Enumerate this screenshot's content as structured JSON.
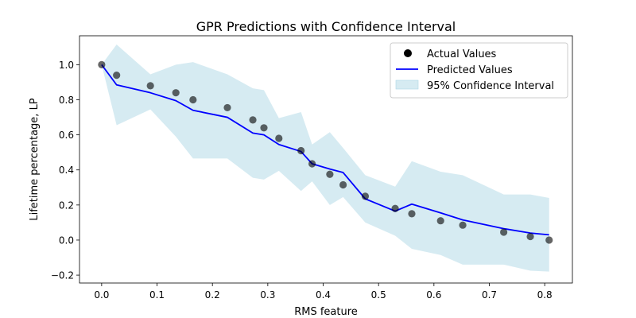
{
  "chart_data": {
    "type": "line",
    "title": "GPR Predictions with Confidence Interval",
    "xlabel": "RMS feature",
    "ylabel": "Lifetime percentage, LP",
    "xlim": [
      -0.04,
      0.85
    ],
    "ylim": [
      -0.245,
      1.165
    ],
    "xticks": [
      0.0,
      0.1,
      0.2,
      0.3,
      0.4,
      0.5,
      0.6,
      0.7,
      0.8
    ],
    "xtick_labels": [
      "0.0",
      "0.1",
      "0.2",
      "0.3",
      "0.4",
      "0.5",
      "0.6",
      "0.7",
      "0.8"
    ],
    "yticks": [
      -0.2,
      0.0,
      0.2,
      0.4,
      0.6,
      0.8,
      1.0
    ],
    "ytick_labels": [
      "−0.2",
      "0.0",
      "0.2",
      "0.4",
      "0.6",
      "0.8",
      "1.0"
    ],
    "grid": false,
    "legend_position": "top-right",
    "legend": [
      {
        "label": "Actual Values",
        "kind": "marker",
        "color": "#000000"
      },
      {
        "label": "Predicted Values",
        "kind": "line",
        "color": "#0000ff"
      },
      {
        "label": "95% Confidence Interval",
        "kind": "patch",
        "color": "#add8e6"
      }
    ],
    "actual": {
      "name": "Actual Values",
      "color": "#000000",
      "x": [
        0.0,
        0.027,
        0.088,
        0.134,
        0.165,
        0.227,
        0.273,
        0.293,
        0.32,
        0.36,
        0.38,
        0.412,
        0.436,
        0.476,
        0.53,
        0.56,
        0.612,
        0.652,
        0.726,
        0.774,
        0.808
      ],
      "y": [
        1.0,
        0.94,
        0.88,
        0.84,
        0.8,
        0.755,
        0.685,
        0.64,
        0.58,
        0.51,
        0.435,
        0.375,
        0.315,
        0.25,
        0.18,
        0.15,
        0.11,
        0.085,
        0.045,
        0.02,
        0.0
      ]
    },
    "predicted": {
      "name": "Predicted Values",
      "color": "#0000ff",
      "x": [
        0.0,
        0.027,
        0.088,
        0.134,
        0.165,
        0.227,
        0.273,
        0.293,
        0.32,
        0.36,
        0.38,
        0.412,
        0.436,
        0.476,
        0.53,
        0.56,
        0.612,
        0.652,
        0.726,
        0.774,
        0.808
      ],
      "y": [
        1.0,
        0.885,
        0.84,
        0.795,
        0.74,
        0.7,
        0.61,
        0.6,
        0.545,
        0.505,
        0.435,
        0.405,
        0.385,
        0.235,
        0.165,
        0.205,
        0.155,
        0.115,
        0.065,
        0.04,
        0.03
      ]
    },
    "confidence_interval": {
      "name": "95% Confidence Interval",
      "color": "#add8e6",
      "x": [
        0.0,
        0.027,
        0.088,
        0.134,
        0.165,
        0.227,
        0.273,
        0.293,
        0.32,
        0.36,
        0.38,
        0.412,
        0.436,
        0.476,
        0.53,
        0.56,
        0.612,
        0.652,
        0.726,
        0.774,
        0.808
      ],
      "upper": [
        1.0,
        1.115,
        0.945,
        1.0,
        1.015,
        0.945,
        0.865,
        0.855,
        0.695,
        0.73,
        0.545,
        0.615,
        0.525,
        0.37,
        0.305,
        0.45,
        0.39,
        0.37,
        0.26,
        0.26,
        0.24
      ],
      "lower": [
        1.0,
        0.655,
        0.745,
        0.59,
        0.465,
        0.465,
        0.355,
        0.345,
        0.395,
        0.28,
        0.335,
        0.2,
        0.245,
        0.1,
        0.025,
        -0.05,
        -0.085,
        -0.14,
        -0.14,
        -0.175,
        -0.18
      ]
    }
  }
}
